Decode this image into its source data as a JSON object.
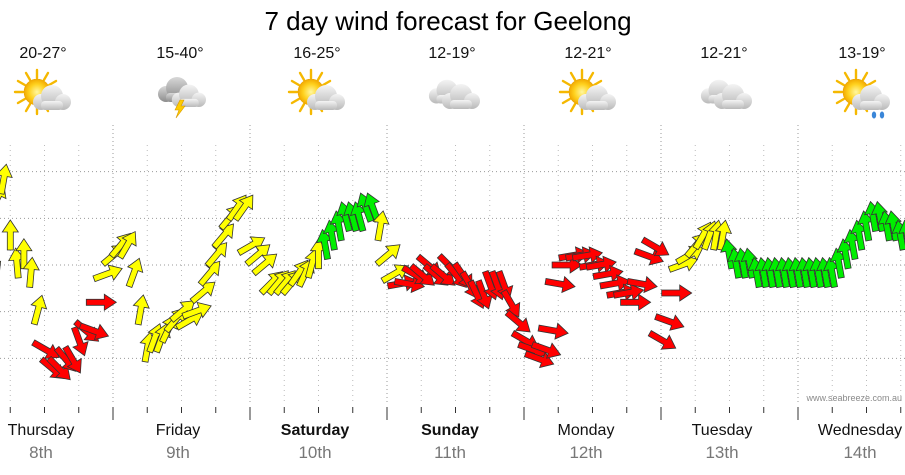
{
  "chart_data": {
    "type": "line",
    "title": "7 day wind forecast for Geelong",
    "watermark": "www.seabreeze.com.au",
    "days": [
      {
        "name": "Thursday",
        "date": "8th",
        "temp": "20-27°",
        "icon": "sun-cloud-icon",
        "bold": false
      },
      {
        "name": "Friday",
        "date": "9th",
        "temp": "15-40°",
        "icon": "storm-cloud-icon",
        "bold": false
      },
      {
        "name": "Saturday",
        "date": "10th",
        "temp": "16-25°",
        "icon": "sun-cloud-icon",
        "bold": true
      },
      {
        "name": "Sunday",
        "date": "11th",
        "temp": "12-19°",
        "icon": "cloud-icon",
        "bold": true
      },
      {
        "name": "Monday",
        "date": "12th",
        "temp": "12-21°",
        "icon": "sun-cloud-icon",
        "bold": false
      },
      {
        "name": "Tuesday",
        "date": "13th",
        "temp": "12-21°",
        "icon": "cloud-icon",
        "bold": false
      },
      {
        "name": "Wednesday",
        "date": "14th",
        "temp": "13-19°",
        "icon": "sun-cloud-rain-icon",
        "bold": false
      }
    ],
    "colors": {
      "offshore": "#ff0000",
      "cross": "#ffff00",
      "onshore": "#00ee00",
      "outline": "#333333",
      "grid": "#999999"
    },
    "series": [
      {
        "x": [
          0.0,
          0.05,
          0.1,
          0.15,
          0.2,
          0.25,
          0.3,
          0.35,
          0.4,
          0.45,
          0.5,
          0.55,
          0.6,
          0.65,
          0.7,
          0.75,
          0.8,
          0.85,
          0.9,
          0.95,
          1.0,
          1.05,
          1.1,
          1.15,
          1.2,
          1.25,
          1.3,
          1.35,
          1.4,
          1.45,
          1.5,
          1.55,
          1.6,
          1.65,
          1.7,
          1.75,
          1.8,
          1.85,
          1.9,
          1.95,
          2.0,
          2.05,
          2.1,
          2.15,
          2.2,
          2.25,
          2.3,
          2.35,
          2.4,
          2.45,
          2.5,
          2.55,
          2.6,
          2.65,
          2.7,
          2.75,
          2.8,
          2.85,
          2.9,
          2.95,
          3.0,
          3.05,
          3.1,
          3.15,
          3.2,
          3.25,
          3.3,
          3.35,
          3.4,
          3.45,
          3.5,
          3.55,
          3.6,
          3.65,
          3.7,
          3.75,
          3.8,
          3.85,
          3.9,
          3.95,
          4.0,
          4.05,
          4.1,
          4.15,
          4.2,
          4.25,
          4.3,
          4.35,
          4.4,
          4.45,
          4.5,
          4.55,
          4.6,
          4.65,
          4.7,
          4.75,
          4.8,
          4.85,
          4.9,
          4.95,
          5.0,
          5.05,
          5.1,
          5.15,
          5.2,
          5.25,
          5.3,
          5.35,
          5.4,
          5.45,
          5.5,
          5.55,
          5.6,
          5.65,
          5.7,
          5.75,
          5.8,
          5.85,
          5.9,
          5.95,
          6.0,
          6.05,
          6.1,
          6.15,
          6.2,
          6.25,
          6.3,
          6.35,
          6.4,
          6.45,
          6.5,
          6.55,
          6.6,
          6.65,
          6.7,
          6.75,
          6.8,
          6.85,
          6.9,
          6.95
        ],
        "y": [
          6,
          9,
          14,
          22,
          24,
          18,
          15,
          16,
          14,
          10,
          6,
          4,
          4,
          5,
          5,
          7,
          8,
          8,
          11,
          14,
          16,
          17,
          17,
          14,
          10,
          6,
          7,
          7,
          8,
          9,
          10,
          9,
          10,
          12,
          14,
          16,
          18,
          20,
          21,
          21,
          17,
          16,
          15,
          13,
          13,
          13,
          13,
          14,
          14,
          15,
          16,
          17,
          18,
          19,
          20,
          20,
          20,
          21,
          21,
          19,
          16,
          14,
          13,
          13,
          14,
          14,
          15,
          14,
          14,
          15,
          14,
          14,
          13,
          12,
          12,
          13,
          13,
          13,
          11,
          9,
          7,
          6,
          5,
          6,
          8,
          13,
          15,
          16,
          16,
          16,
          15,
          15,
          14,
          13,
          12,
          12,
          11,
          13,
          16,
          17,
          7,
          9,
          12,
          15,
          16,
          17,
          18,
          18,
          18,
          18,
          16,
          15,
          15,
          15,
          14,
          14,
          14,
          14,
          14,
          14,
          14,
          14,
          14,
          14,
          14,
          14,
          15,
          16,
          17,
          18,
          19,
          20,
          20,
          19,
          19,
          18,
          18,
          18,
          19,
          20
        ],
        "dir_deg": [
          60,
          60,
          60,
          45,
          30,
          20,
          15,
          20,
          25,
          35,
          140,
          150,
          155,
          160,
          170,
          180,
          150,
          130,
          110,
          90,
          70,
          60,
          50,
          40,
          30,
          30,
          40,
          40,
          45,
          60,
          70,
          80,
          90,
          70,
          60,
          60,
          60,
          60,
          55,
          55,
          80,
          70,
          70,
          65,
          60,
          60,
          60,
          55,
          45,
          35,
          20,
          10,
          10,
          10,
          5,
          5,
          5,
          0,
          0,
          30,
          70,
          80,
          100,
          120,
          140,
          150,
          150,
          150,
          150,
          155,
          160,
          165,
          170,
          175,
          180,
          180,
          180,
          180,
          170,
          150,
          140,
          130,
          130,
          130,
          120,
          120,
          110,
          100,
          100,
          100,
          100,
          100,
          100,
          100,
          100,
          100,
          110,
          120,
          130,
          140,
          140,
          130,
          110,
          90,
          80,
          60,
          50,
          40,
          30,
          30,
          10,
          10,
          10,
          10,
          10,
          10,
          10,
          10,
          10,
          10,
          10,
          10,
          10,
          10,
          10,
          10,
          10,
          10,
          10,
          10,
          10,
          10,
          10,
          10,
          10,
          10,
          10,
          10,
          10,
          10
        ]
      }
    ],
    "ylim": [
      0,
      30
    ],
    "grid": true
  }
}
